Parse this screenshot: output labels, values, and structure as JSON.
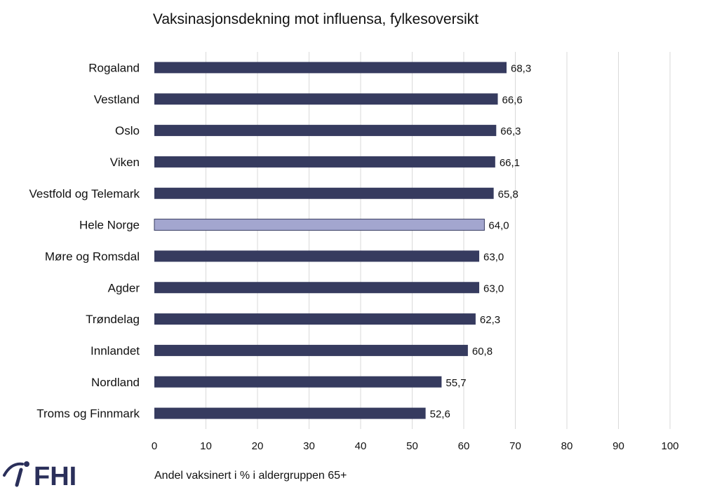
{
  "chart_data": {
    "type": "bar",
    "orientation": "horizontal",
    "title": "Vaksinasjonsdekning mot influensa, fylkesoversikt",
    "xlabel": "Andel vaksinert  i % i aldergruppen  65+",
    "ylabel": "",
    "xlim": [
      0,
      100
    ],
    "x_ticks": [
      0,
      10,
      20,
      30,
      40,
      50,
      60,
      70,
      80,
      90,
      100
    ],
    "grid": true,
    "categories": [
      "Rogaland",
      "Vestland",
      "Oslo",
      "Viken",
      "Vestfold og Telemark",
      "Hele Norge",
      "Møre og Romsdal",
      "Agder",
      "Trøndelag",
      "Innlandet",
      "Nordland",
      "Troms og Finnmark"
    ],
    "values": [
      68.3,
      66.6,
      66.3,
      66.1,
      65.8,
      64.0,
      63.0,
      63.0,
      62.3,
      60.8,
      55.7,
      52.6
    ],
    "value_labels": [
      "68,3",
      "66,6",
      "66,3",
      "66,1",
      "65,8",
      "64,0",
      "63,0",
      "63,0",
      "62,3",
      "60,8",
      "55,7",
      "52,6"
    ],
    "highlight_category": "Hele Norge",
    "colors": {
      "bar": "#363b5f",
      "highlight": "#a3a6cf",
      "grid": "#d9d9d9"
    }
  },
  "logo": {
    "text": "FHI",
    "color": "#2a2f5a"
  }
}
